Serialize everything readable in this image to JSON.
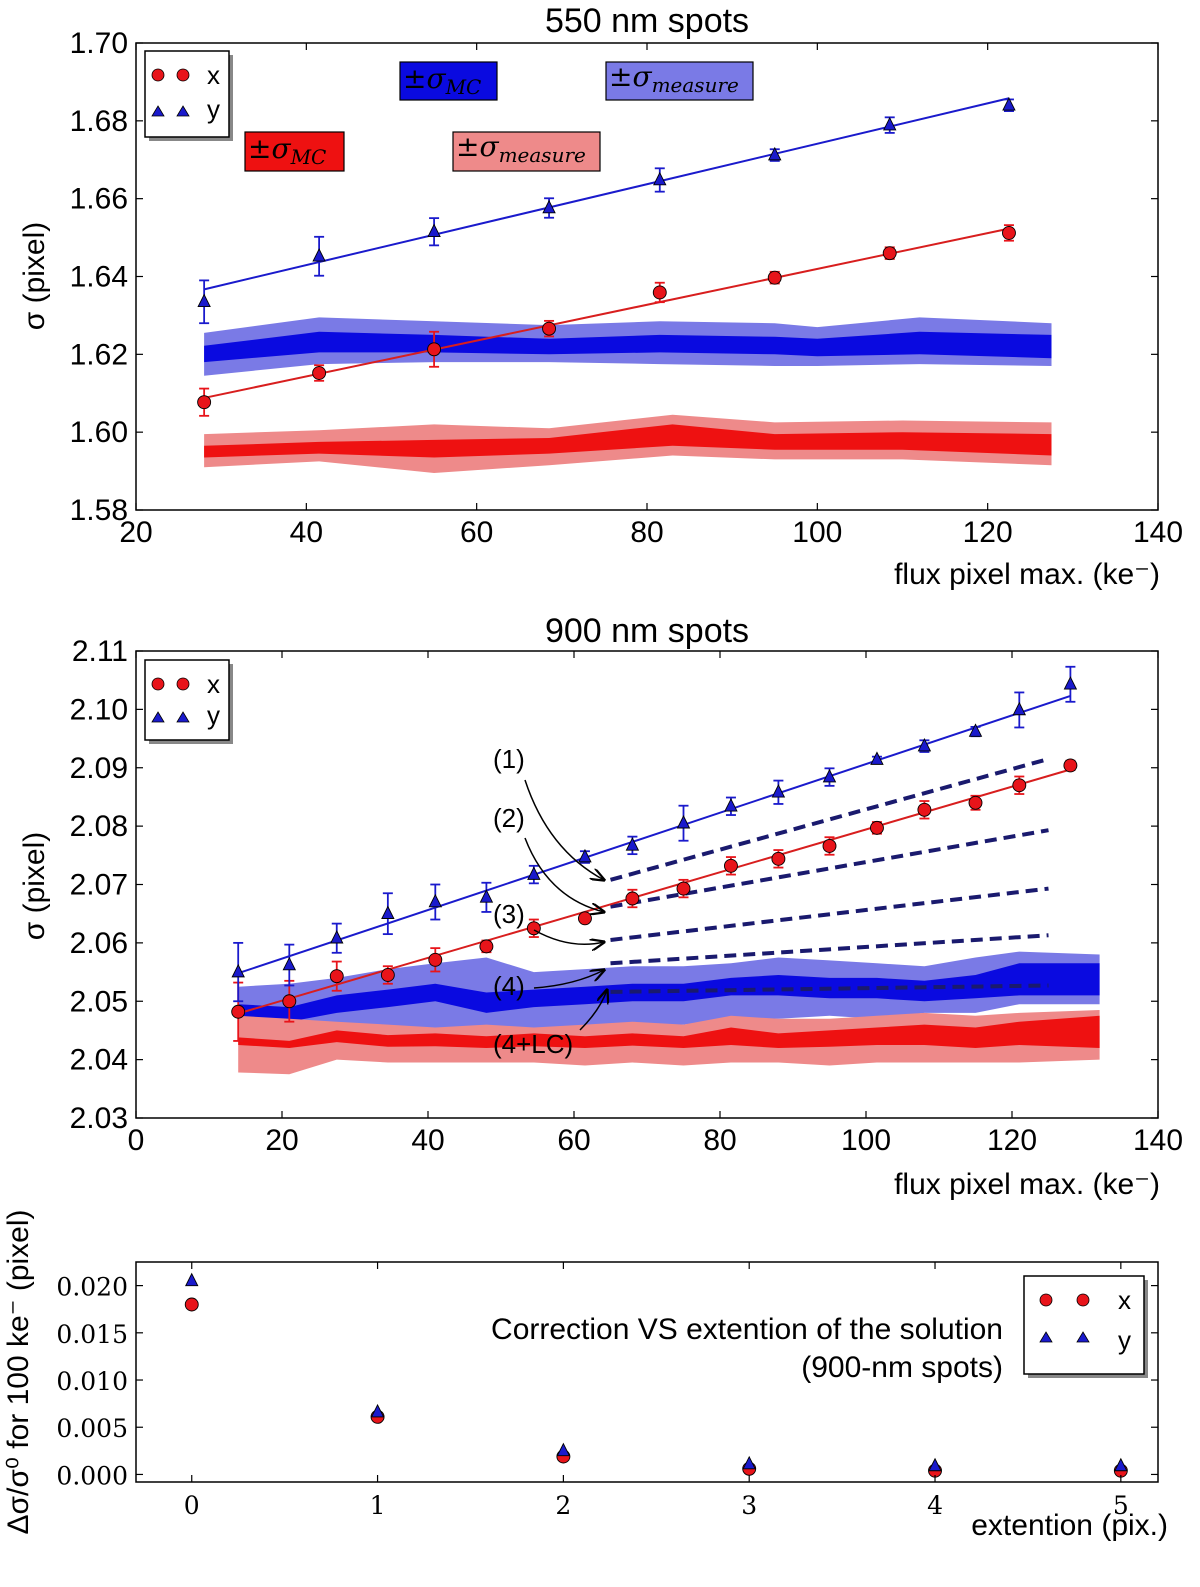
{
  "chart_data": [
    {
      "type": "scatter",
      "title": "550 nm spots",
      "xlabel": "flux pixel max. (ke⁻)",
      "ylabel": "σ (pixel)",
      "xlim": [
        20,
        140
      ],
      "ylim": [
        1.58,
        1.7
      ],
      "xticks": [
        "20",
        "40",
        "60",
        "80",
        "100",
        "120",
        "140"
      ],
      "yticks": [
        "1.58",
        "1.60",
        "1.62",
        "1.64",
        "1.66",
        "1.68",
        "1.70"
      ],
      "legend": [
        "x",
        "y"
      ],
      "band_labels": {
        "mc_prefix": "±σ",
        "mc_sub": "MC",
        "measure_prefix": "±σ",
        "measure_sub": "measure"
      },
      "series": [
        {
          "name": "x",
          "color": "#e8141a",
          "marker": "circle",
          "x": [
            28,
            41.5,
            55,
            68.5,
            81.5,
            95,
            108.5,
            122.5
          ],
          "y": [
            1.6077,
            1.6152,
            1.6213,
            1.6266,
            1.6359,
            1.6397,
            1.646,
            1.6512
          ],
          "err": [
            0.0035,
            0.002,
            0.0045,
            0.002,
            0.0025,
            0.0015,
            0.0015,
            0.002
          ],
          "fit": {
            "x": [
              28,
              122.5
            ],
            "y": [
              1.6088,
              1.6523
            ]
          }
        },
        {
          "name": "y",
          "color": "#1a1acc",
          "marker": "triangle",
          "x": [
            28,
            41.5,
            55,
            68.5,
            81.5,
            95,
            108.5,
            122.5
          ],
          "y": [
            1.6335,
            1.6452,
            1.6515,
            1.6576,
            1.6648,
            1.6712,
            1.6789,
            1.684
          ],
          "err": [
            0.0055,
            0.005,
            0.0035,
            0.0025,
            0.003,
            0.0015,
            0.002,
            0.0015
          ],
          "fit": {
            "x": [
              28,
              122.5
            ],
            "y": [
              1.6367,
              1.6858
            ]
          }
        }
      ],
      "bands": [
        {
          "name": "blue measure",
          "color": "#7a7ae6",
          "x": [
            28,
            41.5,
            55,
            68.5,
            81.5,
            95,
            100,
            112,
            127.5
          ],
          "lo": [
            1.6145,
            1.6175,
            1.618,
            1.618,
            1.6175,
            1.617,
            1.617,
            1.6175,
            1.617
          ],
          "hi": [
            1.6255,
            1.6295,
            1.6285,
            1.6275,
            1.6285,
            1.628,
            1.627,
            1.6295,
            1.628
          ]
        },
        {
          "name": "blue mc",
          "color": "#0a0ae0",
          "x": [
            28,
            41.5,
            55,
            68.5,
            81.5,
            95,
            100,
            112,
            127.5
          ],
          "lo": [
            1.618,
            1.6205,
            1.6205,
            1.62,
            1.6205,
            1.62,
            1.6195,
            1.62,
            1.619
          ],
          "hi": [
            1.6222,
            1.6258,
            1.625,
            1.624,
            1.625,
            1.6245,
            1.624,
            1.6258,
            1.625
          ]
        },
        {
          "name": "red measure",
          "color": "#ee8a8a",
          "x": [
            28,
            41.5,
            55,
            68.5,
            83,
            95,
            110,
            127.5
          ],
          "lo": [
            1.591,
            1.5925,
            1.5895,
            1.5915,
            1.594,
            1.593,
            1.593,
            1.5915
          ],
          "hi": [
            1.5995,
            1.6005,
            1.602,
            1.601,
            1.6045,
            1.6025,
            1.603,
            1.6025
          ]
        },
        {
          "name": "red mc",
          "color": "#ee1111",
          "x": [
            28,
            41.5,
            55,
            68.5,
            83,
            95,
            110,
            127.5
          ],
          "lo": [
            1.5935,
            1.5945,
            1.5935,
            1.5945,
            1.5965,
            1.5955,
            1.5955,
            1.594
          ],
          "hi": [
            1.5965,
            1.5975,
            1.598,
            1.5985,
            1.602,
            1.5995,
            1.6,
            1.5995
          ]
        }
      ]
    },
    {
      "type": "scatter",
      "title": "900 nm spots",
      "xlabel": "flux pixel max. (ke⁻)",
      "ylabel": "σ (pixel)",
      "xlim": [
        0,
        140
      ],
      "ylim": [
        2.03,
        2.11
      ],
      "xticks": [
        "0",
        "20",
        "40",
        "60",
        "80",
        "100",
        "120",
        "140"
      ],
      "yticks": [
        "2.03",
        "2.04",
        "2.05",
        "2.06",
        "2.07",
        "2.08",
        "2.09",
        "2.10",
        "2.11"
      ],
      "legend": [
        "x",
        "y"
      ],
      "annotations": [
        "(1)",
        "(2)",
        "(3)",
        "(4)",
        "(4+LC)"
      ],
      "series": [
        {
          "name": "x",
          "color": "#e8141a",
          "marker": "circle",
          "x": [
            14,
            21,
            27.5,
            34.5,
            41,
            48,
            54.5,
            61.5,
            68,
            75,
            81.5,
            88,
            95,
            101.5,
            108,
            115,
            121,
            128
          ],
          "y": [
            2.0482,
            2.05,
            2.0543,
            2.0545,
            2.0571,
            2.0594,
            2.0625,
            2.0642,
            2.0676,
            2.0693,
            2.0732,
            2.0744,
            2.0766,
            2.0797,
            2.0828,
            2.084,
            2.087,
            2.0904
          ],
          "err": [
            0.005,
            0.0035,
            0.0025,
            0.0015,
            0.002,
            0.001,
            0.0015,
            0.0005,
            0.0015,
            0.0015,
            0.0015,
            0.0015,
            0.0015,
            0.001,
            0.0015,
            0.0012,
            0.0015,
            0.0008
          ],
          "fit": {
            "x": [
              14,
              128
            ],
            "y": [
              2.0479,
              2.0897
            ]
          }
        },
        {
          "name": "y",
          "color": "#1a1acc",
          "marker": "triangle",
          "x": [
            14,
            21,
            27.5,
            34.5,
            41,
            48,
            54.5,
            61.5,
            68,
            75,
            81.5,
            88,
            95,
            101.5,
            108,
            115,
            121,
            128
          ],
          "y": [
            2.055,
            2.0562,
            2.0608,
            2.065,
            2.067,
            2.0678,
            2.0717,
            2.0747,
            2.0767,
            2.0805,
            2.0834,
            2.0858,
            2.0884,
            2.0914,
            2.0937,
            2.0962,
            2.0999,
            2.1043
          ],
          "err": [
            0.005,
            0.0035,
            0.0025,
            0.0035,
            0.003,
            0.0025,
            0.0015,
            0.001,
            0.0015,
            0.003,
            0.0015,
            0.002,
            0.0015,
            0.0005,
            0.001,
            0.0008,
            0.003,
            0.003
          ],
          "fit": {
            "x": [
              14,
              128
            ],
            "y": [
              2.0548,
              2.1023
            ]
          }
        }
      ],
      "dashed": [
        {
          "name": "(1)",
          "x": [
            65,
            125
          ],
          "y": [
            2.0708,
            2.0915
          ]
        },
        {
          "name": "(2)",
          "x": [
            65,
            125
          ],
          "y": [
            2.0662,
            2.0793
          ]
        },
        {
          "name": "(3)",
          "x": [
            65,
            125
          ],
          "y": [
            2.0605,
            2.0693
          ]
        },
        {
          "name": "(4)",
          "x": [
            65,
            125
          ],
          "y": [
            2.0565,
            2.0613
          ]
        },
        {
          "name": "(4+LC)",
          "x": [
            65,
            125
          ],
          "y": [
            2.0516,
            2.0527
          ]
        }
      ],
      "bands": [
        {
          "name": "blue measure",
          "color": "#7a7ae6",
          "x": [
            14,
            21,
            27.5,
            34.5,
            41,
            48,
            54.5,
            61.5,
            68,
            75,
            81.5,
            88,
            95,
            101.5,
            108,
            115,
            121,
            132
          ],
          "lo": [
            2.0435,
            2.043,
            2.0445,
            2.045,
            2.0455,
            2.044,
            2.045,
            2.0455,
            2.046,
            2.046,
            2.047,
            2.047,
            2.0475,
            2.047,
            2.048,
            2.048,
            2.0495,
            2.0495
          ],
          "hi": [
            2.0525,
            2.053,
            2.054,
            2.0555,
            2.0565,
            2.0575,
            2.055,
            2.0555,
            2.056,
            2.056,
            2.0565,
            2.0575,
            2.057,
            2.0565,
            2.056,
            2.0575,
            2.0585,
            2.058
          ]
        },
        {
          "name": "blue mc",
          "color": "#0a0ae0",
          "x": [
            14,
            21,
            27.5,
            34.5,
            41,
            48,
            54.5,
            61.5,
            68,
            75,
            81.5,
            88,
            95,
            101.5,
            108,
            115,
            121,
            132
          ],
          "lo": [
            2.047,
            2.0465,
            2.048,
            2.049,
            2.05,
            2.048,
            2.049,
            2.0495,
            2.05,
            2.05,
            2.051,
            2.051,
            2.0505,
            2.0505,
            2.05,
            2.0505,
            2.051,
            2.051
          ],
          "hi": [
            2.0495,
            2.049,
            2.051,
            2.052,
            2.053,
            2.0515,
            2.052,
            2.0525,
            2.053,
            2.053,
            2.054,
            2.0545,
            2.054,
            2.054,
            2.0535,
            2.0545,
            2.0565,
            2.0565
          ]
        },
        {
          "name": "red measure",
          "color": "#ee8a8a",
          "x": [
            14,
            21,
            27.5,
            34.5,
            41,
            48,
            54.5,
            61.5,
            68,
            75,
            81.5,
            88,
            95,
            101.5,
            108,
            115,
            121,
            132
          ],
          "lo": [
            2.0378,
            2.0375,
            2.04,
            2.0395,
            2.0395,
            2.0395,
            2.0395,
            2.039,
            2.0395,
            2.039,
            2.0395,
            2.0395,
            2.039,
            2.0395,
            2.0395,
            2.0395,
            2.0395,
            2.04
          ],
          "hi": [
            2.0475,
            2.047,
            2.0465,
            2.046,
            2.0455,
            2.046,
            2.0455,
            2.046,
            2.0465,
            2.046,
            2.0475,
            2.047,
            2.047,
            2.0475,
            2.048,
            2.0475,
            2.048,
            2.0485
          ]
        },
        {
          "name": "red mc",
          "color": "#ee1111",
          "x": [
            14,
            21,
            27.5,
            34.5,
            41,
            48,
            54.5,
            61.5,
            68,
            75,
            81.5,
            88,
            95,
            101.5,
            108,
            115,
            121,
            132
          ],
          "lo": [
            2.0425,
            2.042,
            2.043,
            2.0422,
            2.0423,
            2.042,
            2.0423,
            2.042,
            2.0424,
            2.042,
            2.0425,
            2.042,
            2.0422,
            2.0425,
            2.0425,
            2.042,
            2.0425,
            2.042
          ],
          "hi": [
            2.0438,
            2.0432,
            2.045,
            2.0442,
            2.0445,
            2.044,
            2.0445,
            2.044,
            2.0445,
            2.044,
            2.0455,
            2.0445,
            2.045,
            2.0455,
            2.046,
            2.0455,
            2.0465,
            2.0475
          ]
        }
      ]
    },
    {
      "type": "scatter",
      "title": "",
      "inset_text": [
        "Correction VS extention of the solution",
        "(900-nm spots)"
      ],
      "xlabel": "extention (pix.)",
      "ylabel": "Δσ/σ⁰ for 100 ke⁻ (pixel)",
      "xlim": [
        -0.3,
        5.2
      ],
      "ylim": [
        -0.0008,
        0.0225
      ],
      "xticks": [
        "0",
        "1",
        "2",
        "3",
        "4",
        "5"
      ],
      "yticks": [
        "0.000",
        "0.005",
        "0.010",
        "0.015",
        "0.020"
      ],
      "legend": [
        "x",
        "y"
      ],
      "series": [
        {
          "name": "x",
          "color": "#e8141a",
          "marker": "circle",
          "x": [
            0,
            1,
            2,
            3,
            4,
            5
          ],
          "y": [
            0.018,
            0.0061,
            0.0019,
            0.0006,
            0.0004,
            0.0004
          ]
        },
        {
          "name": "y",
          "color": "#1a1acc",
          "marker": "triangle",
          "x": [
            0,
            1,
            2,
            3,
            4,
            5
          ],
          "y": [
            0.0205,
            0.0066,
            0.0025,
            0.0011,
            0.0009,
            0.0009
          ]
        }
      ]
    }
  ]
}
